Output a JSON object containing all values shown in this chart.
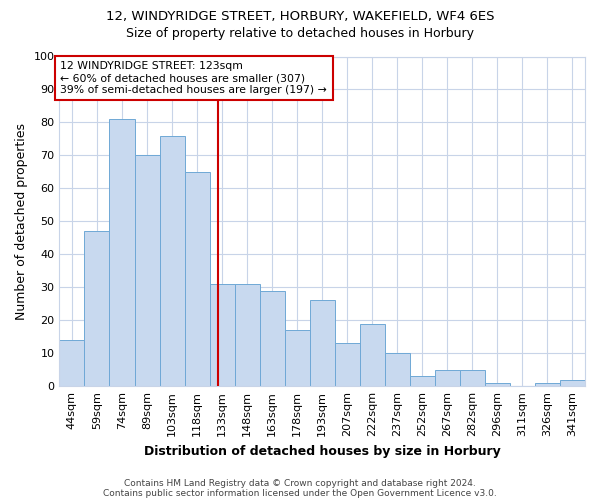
{
  "title1": "12, WINDYRIDGE STREET, HORBURY, WAKEFIELD, WF4 6ES",
  "title2": "Size of property relative to detached houses in Horbury",
  "xlabel": "Distribution of detached houses by size in Horbury",
  "ylabel": "Number of detached properties",
  "bar_labels": [
    "44sqm",
    "59sqm",
    "74sqm",
    "89sqm",
    "103sqm",
    "118sqm",
    "133sqm",
    "148sqm",
    "163sqm",
    "178sqm",
    "193sqm",
    "207sqm",
    "222sqm",
    "237sqm",
    "252sqm",
    "267sqm",
    "282sqm",
    "296sqm",
    "311sqm",
    "326sqm",
    "341sqm"
  ],
  "bar_values": [
    14,
    47,
    81,
    70,
    76,
    65,
    31,
    31,
    29,
    17,
    26,
    13,
    19,
    10,
    3,
    5,
    5,
    1,
    0,
    1,
    2
  ],
  "bar_color": "#c8d9ef",
  "bar_edgecolor": "#6fa8d6",
  "vline_x": 6.33,
  "vline_color": "#cc0000",
  "box_text": "12 WINDYRIDGE STREET: 123sqm\n← 60% of detached houses are smaller (307)\n39% of semi-detached houses are larger (197) →",
  "footer1": "Contains HM Land Registry data © Crown copyright and database right 2024.",
  "footer2": "Contains public sector information licensed under the Open Government Licence v3.0.",
  "ylim": [
    0,
    100
  ],
  "background_color": "#ffffff",
  "grid_color": "#c8d4e8"
}
